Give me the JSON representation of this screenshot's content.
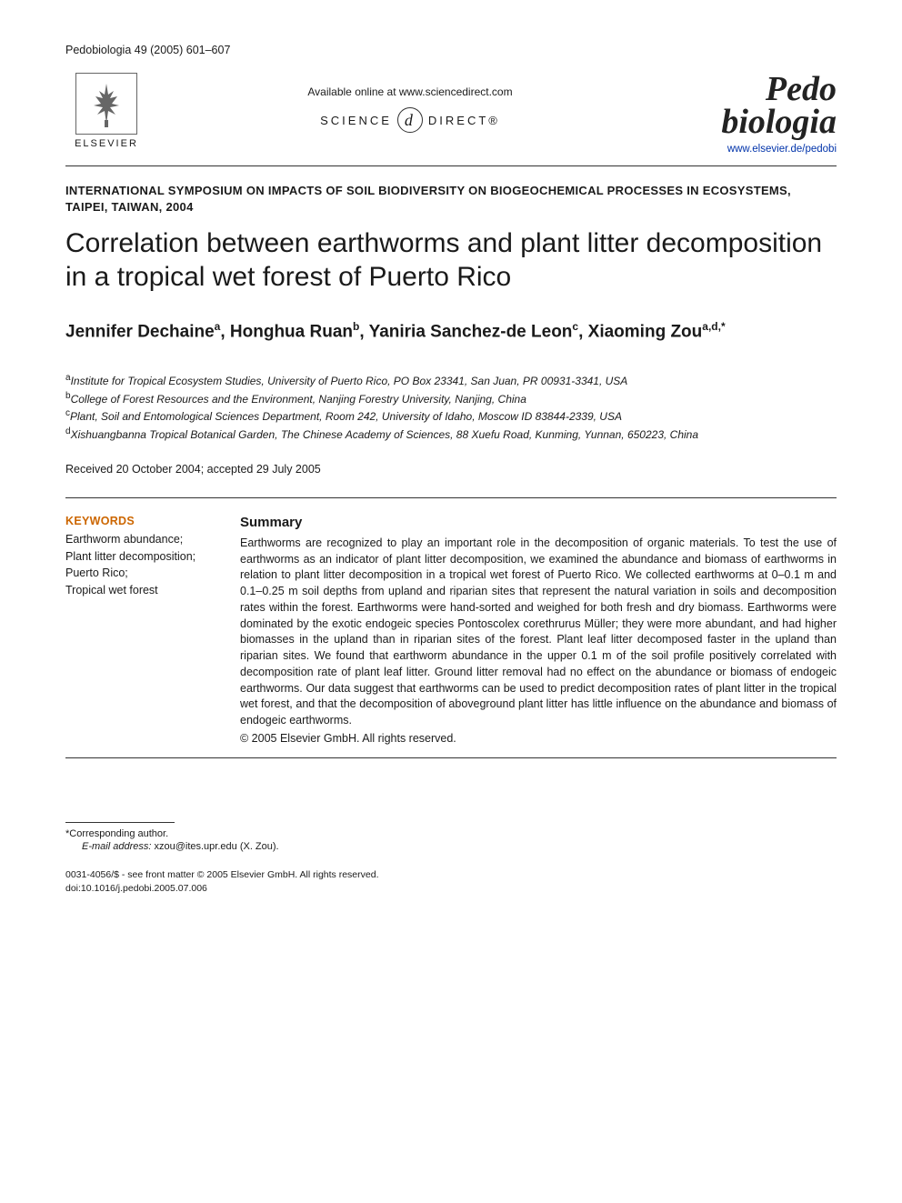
{
  "citation": "Pedobiologia 49 (2005) 601–607",
  "publisher": {
    "name": "ELSEVIER",
    "available_text": "Available online at www.sciencedirect.com",
    "science_direct_left": "SCIENCE",
    "science_direct_at": "d",
    "science_direct_right": "DIRECT®"
  },
  "journal": {
    "title_line1": "Pedo",
    "title_line2": "biologia",
    "url": "www.elsevier.de/pedobi"
  },
  "symposium": "INTERNATIONAL SYMPOSIUM ON IMPACTS OF SOIL BIODIVERSITY ON BIOGEOCHEMICAL PROCESSES IN ECOSYSTEMS, TAIPEI, TAIWAN, 2004",
  "article_title": "Correlation between earthworms and plant litter decomposition in a tropical wet forest of Puerto Rico",
  "authors_html": "Jennifer Dechaine<sup>a</sup>, Honghua Ruan<sup>b</sup>, Yaniria Sanchez-de Leon<sup>c</sup>, Xiaoming Zou<sup>a,d,*</sup>",
  "affiliations": [
    {
      "key": "a",
      "text": "Institute for Tropical Ecosystem Studies, University of Puerto Rico, PO Box 23341, San Juan, PR 00931-3341, USA"
    },
    {
      "key": "b",
      "text": "College of Forest Resources and the Environment, Nanjing Forestry University, Nanjing, China"
    },
    {
      "key": "c",
      "text": "Plant, Soil and Entomological Sciences Department, Room 242, University of Idaho, Moscow ID 83844-2339, USA"
    },
    {
      "key": "d",
      "text": "Xishuangbanna Tropical Botanical Garden, The Chinese Academy of Sciences, 88 Xuefu Road, Kunming, Yunnan, 650223, China"
    }
  ],
  "dates": "Received 20 October 2004; accepted 29 July 2005",
  "keywords_heading": "KEYWORDS",
  "keywords": [
    "Earthworm abundance;",
    "Plant litter decomposition;",
    "Puerto Rico;",
    "Tropical wet forest"
  ],
  "summary_heading": "Summary",
  "summary_text": "Earthworms are recognized to play an important role in the decomposition of organic materials. To test the use of earthworms as an indicator of plant litter decomposition, we examined the abundance and biomass of earthworms in relation to plant litter decomposition in a tropical wet forest of Puerto Rico. We collected earthworms at 0–0.1 m and 0.1–0.25 m soil depths from upland and riparian sites that represent the natural variation in soils and decomposition rates within the forest. Earthworms were hand-sorted and weighed for both fresh and dry biomass. Earthworms were dominated by the exotic endogeic species Pontoscolex corethrurus Müller; they were more abundant, and had higher biomasses in the upland than in riparian sites of the forest. Plant leaf litter decomposed faster in the upland than riparian sites. We found that earthworm abundance in the upper 0.1 m of the soil profile positively correlated with decomposition rate of plant leaf litter. Ground litter removal had no effect on the abundance or biomass of endogeic earthworms. Our data suggest that earthworms can be used to predict decomposition rates of plant litter in the tropical wet forest, and that the decomposition of aboveground plant litter has little influence on the abundance and biomass of endogeic earthworms.",
  "summary_copyright": "© 2005 Elsevier GmbH. All rights reserved.",
  "corresponding_label": "*Corresponding author.",
  "email_label": "E-mail address:",
  "email_value": "xzou@ites.upr.edu (X. Zou).",
  "footer_line1": "0031-4056/$ - see front matter © 2005 Elsevier GmbH. All rights reserved.",
  "footer_line2": "doi:10.1016/j.pedobi.2005.07.006",
  "colors": {
    "keywords_heading": "#cc6600",
    "link": "#0033aa",
    "text": "#1a1a1a"
  }
}
